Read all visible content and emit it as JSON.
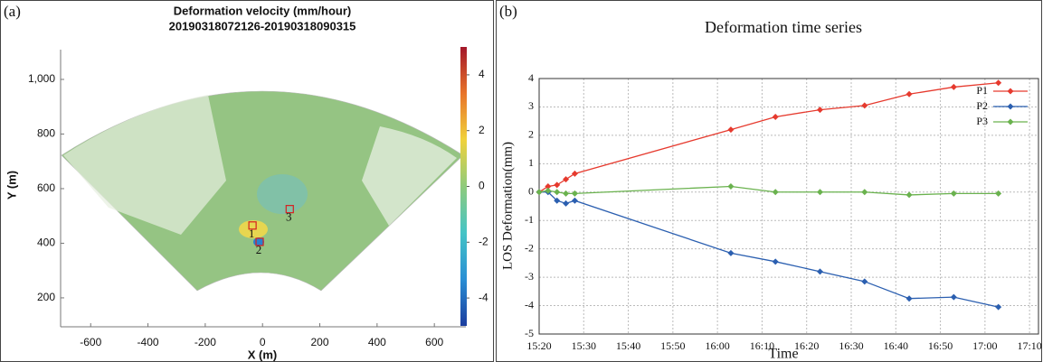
{
  "chart_data": [
    {
      "type": "image",
      "label": "(a)",
      "title": "Deformation velocity (mm/hour)",
      "subtitle": "20190318072126-20190318090315",
      "x_label": "X (m)",
      "y_label": "Y (m)",
      "xlim": [
        -705,
        710
      ],
      "xticks": [
        -600,
        -400,
        -200,
        0,
        200,
        400,
        600
      ],
      "ylim": [
        94,
        1109
      ],
      "yticks": [
        200,
        400,
        600,
        800,
        {
          "value": 1000,
          "label": "1,000"
        }
      ],
      "colorbar": {
        "lim": [
          -5,
          5
        ],
        "ticks": [
          -4,
          -2,
          0,
          2,
          4
        ],
        "colormap": [
          "#1b3d9e",
          "#2a8fd4",
          "#45c4c6",
          "#8fcb7c",
          "#f0d23c",
          "#e8742a",
          "#a3172a"
        ]
      },
      "markers": [
        {
          "label": "1",
          "x": -35,
          "y": 465
        },
        {
          "label": "2",
          "x": -10,
          "y": 405
        },
        {
          "label": "3",
          "x": 95,
          "y": 525
        }
      ],
      "marker_color": "#d62020"
    },
    {
      "type": "line",
      "label": "(b)",
      "title": "Deformation time series",
      "x_label": "Time",
      "y_label": "LOS Deformation(mm)",
      "x": [
        "15:20",
        "15:22",
        "15:24",
        "15:26",
        "15:28",
        "16:03",
        "16:13",
        "16:23",
        "16:33",
        "16:43",
        "16:53",
        "17:03"
      ],
      "xlim": [
        "15:20",
        "17:12"
      ],
      "xticks": [
        "15:20",
        "15:30",
        "15:40",
        "15:50",
        "16:00",
        "16:10",
        "16:20",
        "16:30",
        "16:40",
        "16:50",
        "17:00",
        "17:10"
      ],
      "ylim": [
        -5,
        4
      ],
      "yticks": [
        -5,
        -4,
        -3,
        -2,
        -1,
        0,
        1,
        2,
        3,
        4
      ],
      "grid": true,
      "legend": "top-right",
      "series": [
        {
          "name": "P1",
          "color": "#e63a2e",
          "values": [
            0,
            0.2,
            0.25,
            0.45,
            0.65,
            2.2,
            2.65,
            2.9,
            3.05,
            3.45,
            3.7,
            3.85
          ]
        },
        {
          "name": "P2",
          "color": "#2b5fb0",
          "values": [
            0,
            0,
            -0.3,
            -0.4,
            -0.3,
            -2.15,
            -2.45,
            -2.8,
            -3.15,
            -3.75,
            -3.7,
            -4.05
          ]
        },
        {
          "name": "P3",
          "color": "#6ab24e",
          "values": [
            0,
            0.05,
            0,
            -0.05,
            -0.05,
            0.2,
            0,
            0,
            0,
            -0.1,
            -0.05,
            -0.05
          ]
        }
      ]
    }
  ]
}
